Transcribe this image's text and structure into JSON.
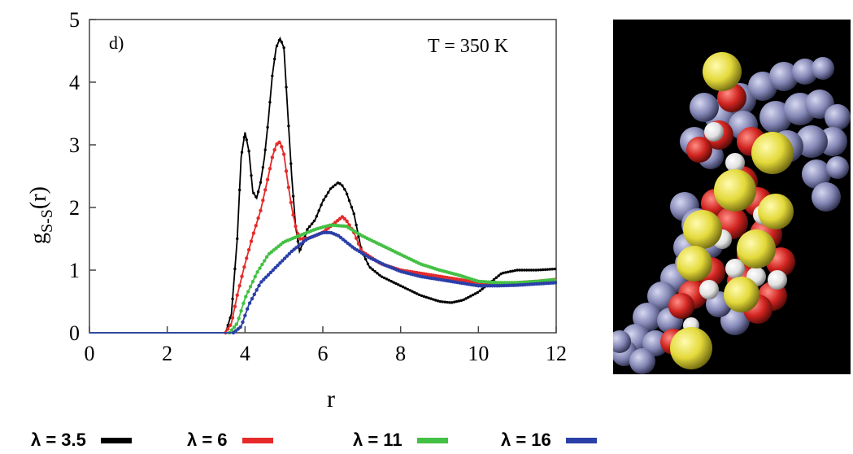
{
  "chart_data": {
    "type": "line",
    "panel_label": "d)",
    "annotation": "T = 350 K",
    "ylabel_main": "g",
    "ylabel_sub": "S-S",
    "ylabel_arg": "(r)",
    "xlabel": "r",
    "xlim": [
      0,
      12
    ],
    "ylim": [
      0,
      5
    ],
    "xticks": [
      "0",
      "2",
      "4",
      "6",
      "8",
      "10",
      "12"
    ],
    "yticks": [
      "0",
      "1",
      "2",
      "3",
      "4",
      "5"
    ],
    "grid": false,
    "legend_position": "bottom",
    "series": [
      {
        "name": "λ = 3.5",
        "color": "#000000",
        "x": [
          0,
          3.5,
          3.65,
          3.8,
          3.9,
          4.0,
          4.1,
          4.2,
          4.3,
          4.4,
          4.5,
          4.6,
          4.7,
          4.8,
          4.9,
          5.0,
          5.1,
          5.2,
          5.3,
          5.4,
          5.5,
          5.6,
          5.8,
          6.0,
          6.2,
          6.4,
          6.5,
          6.6,
          6.8,
          7.0,
          7.2,
          7.5,
          8.0,
          8.5,
          9.0,
          9.3,
          9.6,
          10.0,
          10.3,
          10.6,
          11.0,
          11.5,
          12.0
        ],
        "y": [
          0,
          0,
          0.3,
          1.5,
          2.8,
          3.2,
          2.9,
          2.25,
          2.15,
          2.4,
          2.8,
          3.4,
          4.1,
          4.55,
          4.7,
          4.55,
          3.5,
          2.5,
          1.7,
          1.3,
          1.45,
          1.65,
          1.8,
          2.1,
          2.3,
          2.4,
          2.35,
          2.25,
          1.9,
          1.3,
          1.05,
          0.9,
          0.75,
          0.6,
          0.5,
          0.48,
          0.52,
          0.65,
          0.8,
          0.95,
          1.0,
          1.0,
          1.02
        ]
      },
      {
        "name": "λ = 6",
        "color": "#e62a2a",
        "x": [
          0,
          3.5,
          3.65,
          3.8,
          4.0,
          4.2,
          4.4,
          4.6,
          4.7,
          4.8,
          4.9,
          5.0,
          5.1,
          5.2,
          5.3,
          5.4,
          5.6,
          5.8,
          6.0,
          6.2,
          6.4,
          6.5,
          6.6,
          6.8,
          7.0,
          7.5,
          8.0,
          8.5,
          9.0,
          9.5,
          10.0,
          10.5,
          11.0,
          11.5,
          12.0
        ],
        "y": [
          0,
          0,
          0.15,
          0.6,
          1.1,
          1.55,
          1.95,
          2.5,
          2.8,
          3.0,
          3.05,
          2.85,
          2.4,
          2.0,
          1.7,
          1.5,
          1.5,
          1.55,
          1.6,
          1.7,
          1.8,
          1.85,
          1.8,
          1.6,
          1.3,
          1.1,
          1.0,
          0.95,
          0.9,
          0.85,
          0.8,
          0.78,
          0.8,
          0.82,
          0.85
        ]
      },
      {
        "name": "λ = 11",
        "color": "#44c044",
        "x": [
          0,
          3.6,
          3.8,
          4.0,
          4.3,
          4.6,
          5.0,
          5.4,
          5.8,
          6.2,
          6.6,
          7.0,
          7.5,
          8.0,
          8.5,
          9.0,
          9.5,
          10.0,
          10.5,
          11.0,
          11.5,
          12.0
        ],
        "y": [
          0,
          0,
          0.15,
          0.55,
          0.95,
          1.25,
          1.45,
          1.55,
          1.65,
          1.72,
          1.7,
          1.55,
          1.4,
          1.25,
          1.1,
          1.0,
          0.92,
          0.82,
          0.8,
          0.8,
          0.82,
          0.85
        ]
      },
      {
        "name": "λ = 16",
        "color": "#2a3fa8",
        "x": [
          0,
          3.7,
          3.9,
          4.1,
          4.4,
          4.8,
          5.2,
          5.6,
          6.0,
          6.2,
          6.4,
          6.8,
          7.2,
          7.6,
          8.0,
          8.5,
          9.0,
          9.5,
          10.0,
          10.5,
          11.0,
          11.5,
          12.0
        ],
        "y": [
          0,
          0,
          0.1,
          0.45,
          0.8,
          1.05,
          1.3,
          1.5,
          1.6,
          1.6,
          1.55,
          1.35,
          1.2,
          1.08,
          0.98,
          0.9,
          0.85,
          0.8,
          0.75,
          0.75,
          0.76,
          0.78,
          0.8
        ]
      }
    ]
  },
  "legend": [
    {
      "label": "λ = 3.5",
      "color": "#000000"
    },
    {
      "label": "λ = 6",
      "color": "#e62a2a"
    },
    {
      "label": "λ = 11",
      "color": "#44c044"
    },
    {
      "label": "λ = 16",
      "color": "#2a3fa8"
    }
  ],
  "molecule": {
    "colors": {
      "sulfur": "#e3d93a",
      "oxygen": "#d0231f",
      "hydrogen": "#e6e6e6",
      "carbon": "#8487b5",
      "background": "#000000"
    }
  }
}
